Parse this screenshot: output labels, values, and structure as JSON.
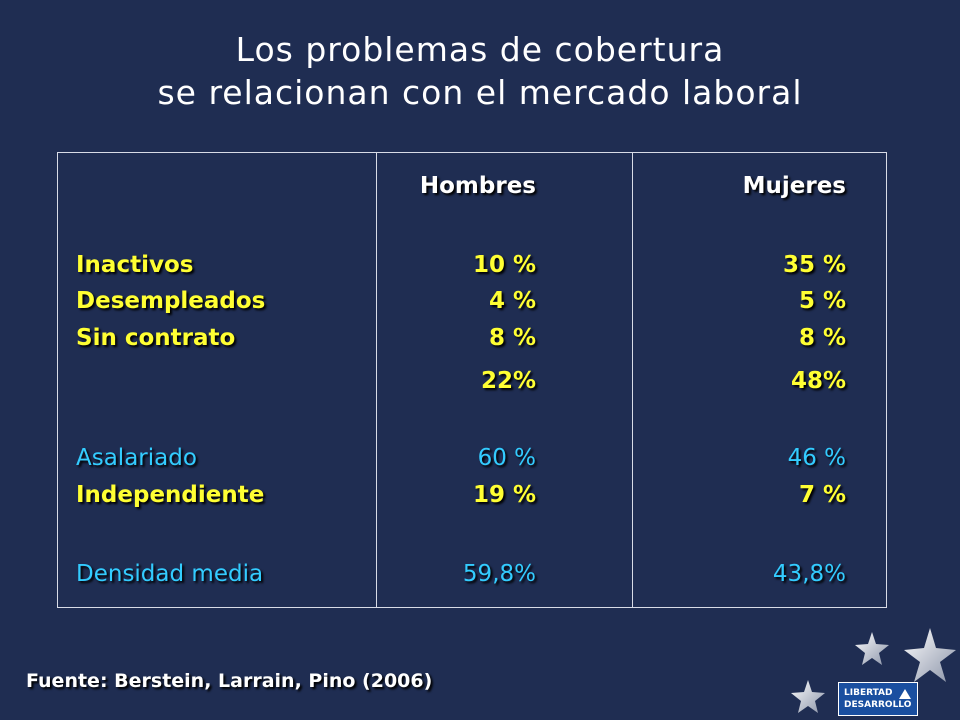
{
  "title": {
    "line1": "Los problemas de cobertura",
    "line2": "se relacionan con el mercado laboral"
  },
  "table": {
    "headers": {
      "hombres": "Hombres",
      "mujeres": "Mujeres"
    },
    "rows": [
      {
        "label": "Inactivos",
        "hombres": "10 %",
        "mujeres": "35 %"
      },
      {
        "label": "Desempleados",
        "hombres": "4 %",
        "mujeres": "5 %"
      },
      {
        "label": "Sin contrato",
        "hombres": "8 %",
        "mujeres": "8 %"
      },
      {
        "label": "",
        "hombres": "22%",
        "mujeres": "48%"
      },
      {
        "label": "Asalariado",
        "hombres": "60 %",
        "mujeres": "46 %"
      },
      {
        "label": "Independiente",
        "hombres": "19 %",
        "mujeres": "7 %"
      },
      {
        "label": "Densidad media",
        "hombres": "59,8%",
        "mujeres": "43,8%"
      }
    ]
  },
  "source": "Fuente: Berstein, Larrain, Pino (2006)",
  "logo": {
    "line1": "LIBERTAD",
    "line2": "DESARROLLO"
  },
  "colors": {
    "background": "#1f2d52",
    "highlight": "#ffff33",
    "accent": "#33ccff"
  }
}
